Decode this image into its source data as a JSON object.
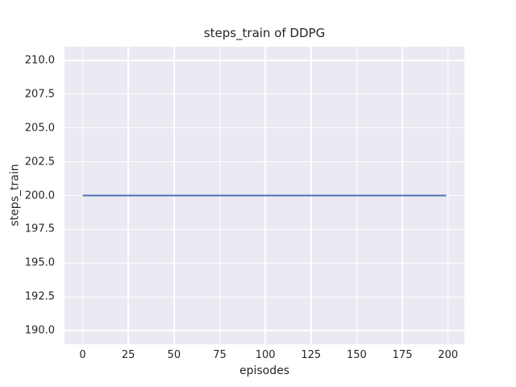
{
  "chart_data": {
    "type": "line",
    "title": "steps_train of DDPG",
    "xlabel": "episodes",
    "ylabel": "steps_train",
    "x_tick_labels": [
      "0",
      "25",
      "50",
      "75",
      "100",
      "125",
      "150",
      "175",
      "200"
    ],
    "y_tick_labels": [
      "210.0",
      "207.5",
      "205.0",
      "202.5",
      "200.0",
      "197.5",
      "195.0",
      "192.5",
      "190.0"
    ],
    "xlim": [
      -9.95,
      208.95
    ],
    "ylim": [
      189.0,
      211.0
    ],
    "grid": true,
    "legend_position": "none",
    "series": [
      {
        "name": "steps_train",
        "color": "#4c72b0",
        "x": [
          0,
          199
        ],
        "y": [
          200,
          200
        ]
      }
    ],
    "colors": {
      "figure_background": "#ffffff",
      "plot_background": "#eaeaf2",
      "grid": "#ffffff",
      "text": "#262626"
    }
  }
}
